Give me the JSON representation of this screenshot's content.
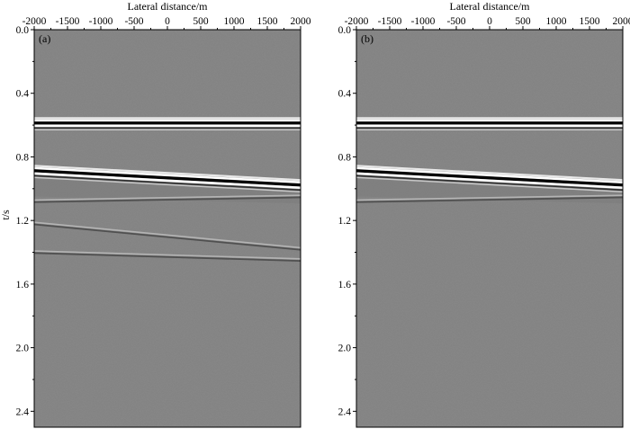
{
  "chart_data": [
    {
      "type": "heatmap",
      "panel_label": "(a)",
      "xlabel": "Lateral distance/m",
      "ylabel": "t/s",
      "xlim": [
        -2000,
        2000
      ],
      "ylim": [
        0.0,
        2.5
      ],
      "y_inverted": true,
      "x_axis_position": "top",
      "x_ticks": [
        -2000,
        -1500,
        -1000,
        -500,
        0,
        500,
        1000,
        1500,
        2000
      ],
      "y_ticks": [
        0.0,
        0.4,
        0.8,
        1.2,
        1.6,
        2.0,
        2.4
      ],
      "background_color": "#808080",
      "events": [
        {
          "t_left": 0.59,
          "t_right": 0.59,
          "polarity": "strong-flat"
        },
        {
          "t_left": 0.89,
          "t_right": 0.98,
          "polarity": "strong-dipping"
        },
        {
          "t_left": 1.08,
          "t_right": 1.05,
          "polarity": "weak"
        },
        {
          "t_left": 1.22,
          "t_right": 1.38,
          "polarity": "weak"
        },
        {
          "t_left": 1.4,
          "t_right": 1.45,
          "polarity": "weak"
        }
      ]
    },
    {
      "type": "heatmap",
      "panel_label": "(b)",
      "xlabel": "Lateral distance/m",
      "ylabel": "",
      "xlim": [
        -2000,
        2000
      ],
      "ylim": [
        0.0,
        2.5
      ],
      "y_inverted": true,
      "x_axis_position": "top",
      "x_ticks": [
        -2000,
        -1500,
        -1000,
        -500,
        0,
        500,
        1000,
        1500,
        2000
      ],
      "y_ticks": [
        0.0,
        0.4,
        0.8,
        1.2,
        1.6,
        2.0,
        2.4
      ],
      "background_color": "#808080",
      "events": [
        {
          "t_left": 0.59,
          "t_right": 0.59,
          "polarity": "strong-flat"
        },
        {
          "t_left": 0.89,
          "t_right": 0.98,
          "polarity": "strong-dipping"
        },
        {
          "t_left": 1.08,
          "t_right": 1.05,
          "polarity": "weak"
        }
      ]
    }
  ]
}
